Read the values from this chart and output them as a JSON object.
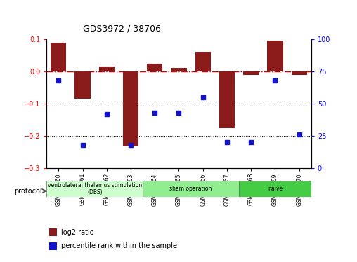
{
  "title": "GDS3972 / 38706",
  "samples": [
    "GSM634960",
    "GSM634961",
    "GSM634962",
    "GSM634963",
    "GSM634964",
    "GSM634965",
    "GSM634966",
    "GSM634967",
    "GSM634968",
    "GSM634969",
    "GSM634970"
  ],
  "log2_ratio": [
    0.09,
    -0.085,
    0.015,
    -0.23,
    0.025,
    0.01,
    0.06,
    -0.175,
    -0.01,
    0.095,
    -0.01
  ],
  "percentile_rank": [
    68,
    18,
    42,
    18,
    43,
    43,
    55,
    20,
    20,
    68,
    26
  ],
  "bar_color": "#8B1A1A",
  "dot_color": "#1414CC",
  "dashed_line_color": "#cc0000",
  "ylim_left": [
    -0.3,
    0.1
  ],
  "ylim_right": [
    0,
    100
  ],
  "yticks_left": [
    -0.3,
    -0.2,
    -0.1,
    0.0,
    0.1
  ],
  "yticks_right": [
    0,
    25,
    50,
    75,
    100
  ],
  "groups": [
    {
      "label": "ventrolateral thalamus stimulation\n(DBS)",
      "start": 0,
      "end": 3,
      "color": "#CCFFCC"
    },
    {
      "label": "sham operation",
      "start": 4,
      "end": 7,
      "color": "#90EE90"
    },
    {
      "label": "naive",
      "start": 8,
      "end": 10,
      "color": "#44CC44"
    }
  ],
  "legend_bar_label": "log2 ratio",
  "legend_dot_label": "percentile rank within the sample",
  "protocol_label": "protocol"
}
